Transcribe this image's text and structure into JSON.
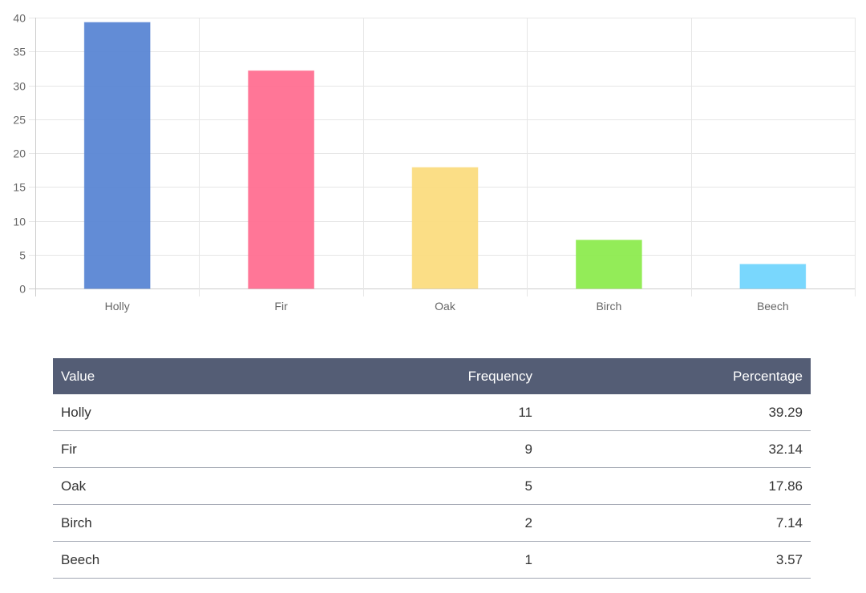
{
  "chart_data": {
    "type": "bar",
    "title": "",
    "xlabel": "",
    "ylabel": "",
    "categories": [
      "Holly",
      "Fir",
      "Oak",
      "Birch",
      "Beech"
    ],
    "values": [
      39.29,
      32.14,
      17.86,
      7.14,
      3.57
    ],
    "colors": [
      "#5a86d4",
      "#ff6f91",
      "#fbdc80",
      "#8deb4f",
      "#72d5fd"
    ],
    "ylim": [
      0,
      40
    ],
    "yticks": [
      0,
      5,
      10,
      15,
      20,
      25,
      30,
      35,
      40
    ],
    "grid": true,
    "legend": "none"
  },
  "table": {
    "headers": {
      "value": "Value",
      "frequency": "Frequency",
      "percentage": "Percentage"
    },
    "rows": [
      {
        "value": "Holly",
        "frequency": "11",
        "percentage": "39.29"
      },
      {
        "value": "Fir",
        "frequency": "9",
        "percentage": "32.14"
      },
      {
        "value": "Oak",
        "frequency": "5",
        "percentage": "17.86"
      },
      {
        "value": "Birch",
        "frequency": "2",
        "percentage": "7.14"
      },
      {
        "value": "Beech",
        "frequency": "1",
        "percentage": "3.57"
      }
    ],
    "header_bg": "#545d75"
  }
}
